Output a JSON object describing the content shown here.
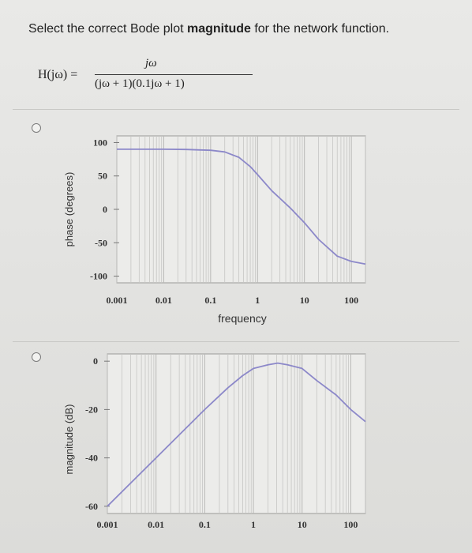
{
  "question": {
    "prefix": "Select the correct Bode plot ",
    "bold": "magnitude",
    "suffix": " for the network function."
  },
  "formula": {
    "lhs": "H(jω) =",
    "numerator": "jω",
    "denominator": "(jω + 1)(0.1jω + 1)"
  },
  "options": [
    {
      "id": "option-phase"
    },
    {
      "id": "option-magnitude"
    }
  ],
  "chart_data": [
    {
      "type": "line",
      "xscale": "log",
      "xlim": [
        0.001,
        200
      ],
      "ylim": [
        -110,
        110
      ],
      "xlabel": "frequency",
      "ylabel": "phase (degrees)",
      "xticks": [
        "0.001",
        "0.01",
        "0.1",
        "1",
        "10",
        "100"
      ],
      "yticks": [
        "100",
        "50",
        "0",
        "-50",
        "-100"
      ],
      "grid": true,
      "line_color": "#8c88c9",
      "series": [
        {
          "x": [
            0.001,
            0.01,
            0.03,
            0.06,
            0.1,
            0.2,
            0.4,
            0.7,
            1,
            2,
            5,
            10,
            20,
            50,
            100,
            200
          ],
          "y": [
            90,
            90,
            89.7,
            89,
            88.5,
            86,
            78,
            64,
            52,
            28,
            2,
            -20,
            -45,
            -70,
            -78,
            -82
          ]
        }
      ]
    },
    {
      "type": "line",
      "xscale": "log",
      "xlim": [
        0.001,
        200
      ],
      "ylim": [
        -63,
        3
      ],
      "xlabel": "",
      "ylabel": "magnitude (dB)",
      "xticks": [
        "0.001",
        "0.01",
        "0.1",
        "1",
        "10",
        "100"
      ],
      "yticks": [
        "0",
        "-20",
        "-40",
        "-60"
      ],
      "grid": true,
      "line_color": "#8c88c9",
      "series": [
        {
          "x": [
            0.001,
            0.01,
            0.1,
            0.3,
            0.6,
            1,
            2,
            3.16,
            5,
            10,
            20,
            50,
            100,
            200
          ],
          "y": [
            -60,
            -40,
            -20,
            -11,
            -6,
            -3,
            -1.5,
            -0.8,
            -1.5,
            -3,
            -8,
            -14,
            -20,
            -25
          ]
        }
      ]
    }
  ]
}
